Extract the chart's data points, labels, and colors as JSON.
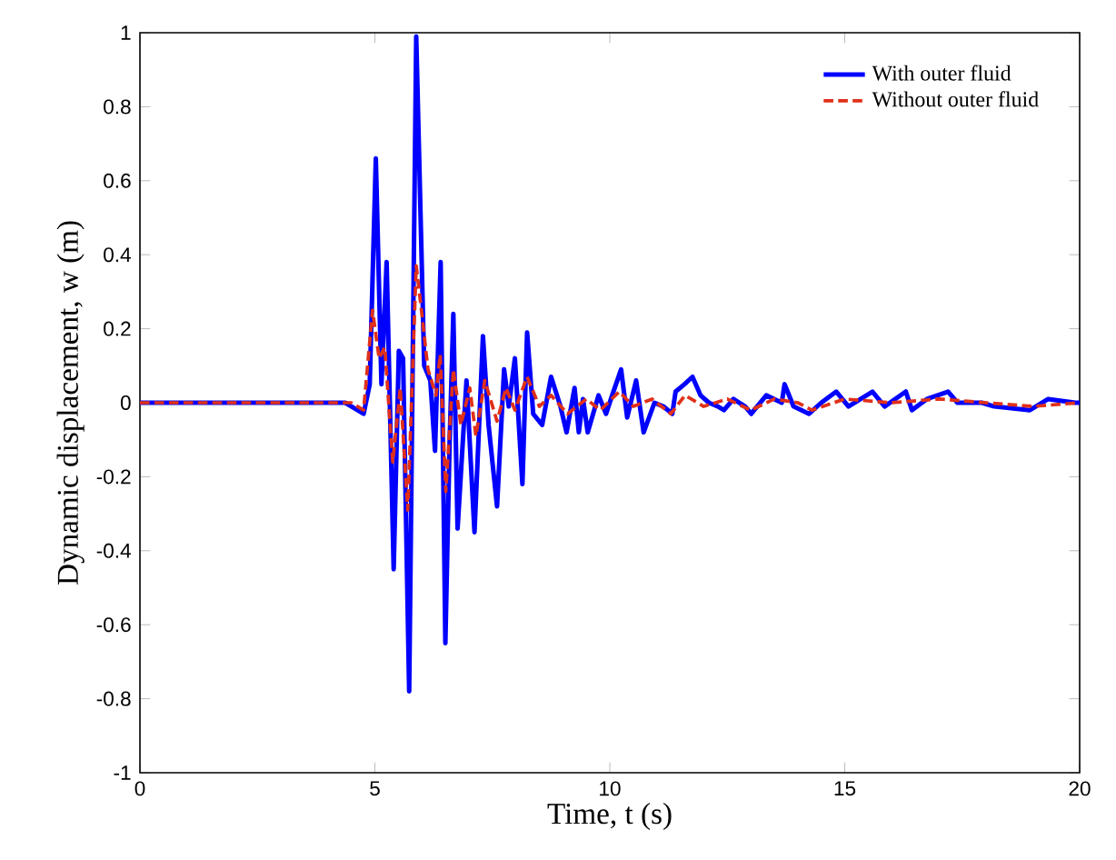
{
  "chart_data": {
    "type": "line",
    "xlabel": "Time, t (s)",
    "ylabel": "Dynamic displacement, w (m)",
    "xlim": [
      0,
      20
    ],
    "ylim": [
      -1,
      1
    ],
    "xticks": [
      0,
      5,
      10,
      15,
      20
    ],
    "yticks": [
      -1,
      -0.8,
      -0.6,
      -0.4,
      -0.2,
      0,
      0.2,
      0.4,
      0.6,
      0.8,
      1
    ],
    "legend": "top right",
    "grid": false,
    "series": [
      {
        "name": "With outer fluid",
        "color": "#0000ff",
        "line_style": "solid",
        "x": [
          0,
          4.37,
          4.76,
          4.89,
          5.02,
          5.14,
          5.25,
          5.4,
          5.51,
          5.6,
          5.73,
          5.88,
          6.05,
          6.18,
          6.28,
          6.4,
          6.5,
          6.59,
          6.67,
          6.76,
          6.95,
          7.12,
          7.3,
          7.42,
          7.6,
          7.75,
          7.85,
          7.98,
          8.14,
          8.24,
          8.37,
          8.56,
          8.75,
          8.95,
          9.08,
          9.25,
          9.34,
          9.43,
          9.53,
          9.76,
          9.92,
          10.05,
          10.24,
          10.37,
          10.56,
          10.72,
          10.95,
          11.14,
          11.33,
          11.4,
          11.59,
          11.76,
          11.93,
          12.11,
          12.3,
          12.43,
          12.63,
          12.88,
          13.01,
          13.33,
          13.66,
          13.72,
          13.91,
          14.24,
          14.5,
          14.82,
          15.08,
          15.59,
          15.85,
          16.3,
          16.43,
          16.75,
          17.2,
          17.4,
          17.92,
          18.18,
          18.94,
          19.33,
          19.91,
          20
        ],
        "values": [
          0,
          0,
          -0.03,
          0.05,
          0.66,
          0.05,
          0.38,
          -0.45,
          0.14,
          0.12,
          -0.78,
          0.99,
          0.1,
          0.06,
          -0.13,
          0.38,
          -0.65,
          -0.11,
          0.24,
          -0.34,
          0.06,
          -0.35,
          0.18,
          -0.06,
          -0.28,
          0.09,
          -0.01,
          0.12,
          -0.22,
          0.19,
          -0.03,
          -0.06,
          0.07,
          -0.01,
          -0.08,
          0.04,
          -0.08,
          0.01,
          -0.08,
          0.02,
          -0.03,
          0.02,
          0.09,
          -0.04,
          0.06,
          -0.08,
          0,
          -0.01,
          -0.03,
          0.03,
          0.05,
          0.07,
          0.02,
          0,
          -0.01,
          -0.02,
          0.01,
          -0.01,
          -0.03,
          0.02,
          0,
          0.05,
          -0.01,
          -0.03,
          0,
          0.03,
          -0.01,
          0.03,
          -0.01,
          0.03,
          -0.02,
          0.01,
          0.03,
          0,
          0,
          -0.01,
          -0.02,
          0.01,
          0,
          0
        ]
      },
      {
        "name": "Without outer fluid",
        "color": "#e0301a",
        "line_style": "dashed",
        "x": [
          0,
          4.5,
          4.76,
          4.95,
          5.09,
          5.21,
          5.38,
          5.54,
          5.7,
          5.88,
          6.0,
          6.13,
          6.3,
          6.39,
          6.51,
          6.67,
          6.83,
          7.02,
          7.15,
          7.34,
          7.6,
          7.79,
          7.98,
          8.24,
          8.5,
          8.75,
          9.1,
          9.5,
          9.8,
          10.2,
          10.5,
          10.9,
          11.3,
          11.6,
          12.0,
          12.5,
          13.0,
          13.5,
          14.0,
          14.3,
          15.0,
          16.0,
          17.0,
          18.0,
          19.0,
          20
        ],
        "values": [
          0,
          0,
          -0.02,
          0.25,
          0.12,
          0.15,
          -0.16,
          0.04,
          -0.29,
          0.37,
          0.24,
          0.09,
          0.02,
          0.13,
          -0.24,
          0.09,
          -0.06,
          0.04,
          -0.09,
          0.06,
          -0.05,
          0.04,
          -0.02,
          0.07,
          -0.01,
          0.02,
          -0.03,
          0.01,
          -0.02,
          0.03,
          -0.01,
          0.01,
          -0.03,
          0.02,
          -0.01,
          0.01,
          -0.02,
          0.01,
          0,
          -0.02,
          0.01,
          0,
          0.01,
          0,
          -0.01,
          0
        ]
      }
    ]
  }
}
